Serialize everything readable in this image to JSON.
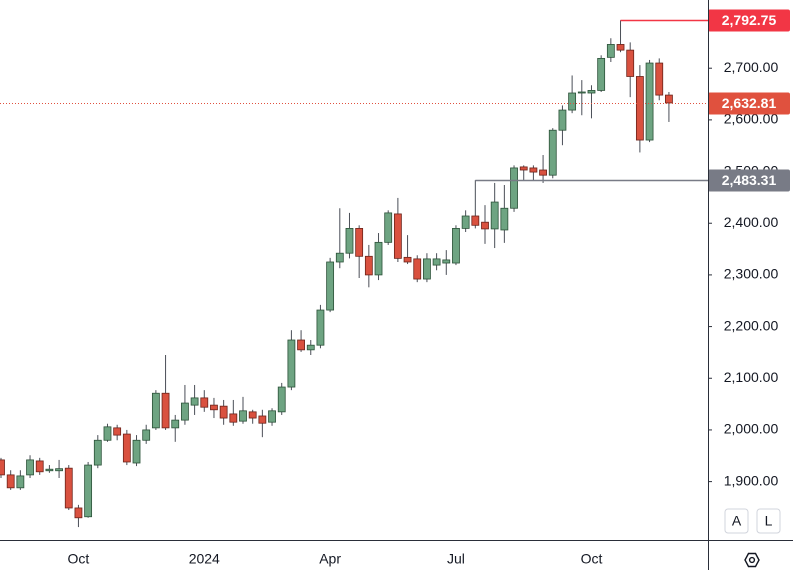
{
  "chart_data": {
    "type": "candlestick",
    "categories": [
      null,
      null,
      null,
      null,
      null,
      null,
      null,
      null,
      "Oct",
      null,
      null,
      null,
      null,
      null,
      null,
      null,
      null,
      null,
      null,
      null,
      null,
      "2024",
      null,
      null,
      null,
      null,
      null,
      null,
      null,
      null,
      null,
      null,
      null,
      null,
      "Apr",
      null,
      null,
      null,
      null,
      null,
      null,
      null,
      null,
      null,
      null,
      null,
      null,
      "Jul",
      null,
      null,
      null,
      null,
      null,
      null,
      null,
      null,
      null,
      null,
      null,
      null,
      null,
      "Oct",
      null,
      null,
      null,
      null,
      null,
      null,
      null,
      null
    ],
    "open": [
      1942,
      1913,
      1888,
      1913,
      1940,
      1921,
      1921,
      1926,
      1849,
      1832,
      1932,
      1980,
      2004,
      1992,
      1936,
      1980,
      2004,
      2071,
      2004,
      2019,
      2048,
      2062,
      2048,
      2046,
      2031,
      2017,
      2035,
      2027,
      2015,
      2035,
      2083,
      2174,
      2155,
      2164,
      2232,
      2325,
      2342,
      2390,
      2336,
      2300,
      2363,
      2418,
      2334,
      2331,
      2292,
      2319,
      2323,
      2323,
      2390,
      2414,
      2402,
      2389,
      2387,
      2429,
      2509,
      2507,
      2503,
      2493,
      2580,
      2619,
      2652,
      2652,
      2657,
      2721,
      2746,
      2735,
      2684,
      2561,
      2710,
      2648
    ],
    "high": [
      1946,
      1922,
      1922,
      1951,
      1946,
      1932,
      1942,
      1932,
      1855,
      1938,
      1990,
      2012,
      2010,
      2000,
      1990,
      2010,
      2077,
      2145,
      2029,
      2087,
      2087,
      2077,
      2062,
      2058,
      2058,
      2064,
      2039,
      2039,
      2042,
      2091,
      2193,
      2193,
      2174,
      2242,
      2333,
      2429,
      2420,
      2396,
      2358,
      2381,
      2425,
      2449,
      2377,
      2338,
      2342,
      2342,
      2348,
      2396,
      2425,
      2483.31,
      2435,
      2478,
      2474,
      2512,
      2512,
      2512,
      2532,
      2584,
      2628,
      2686,
      2677,
      2667,
      2725,
      2758,
      2792.75,
      2750,
      2706,
      2716,
      2719,
      2654
    ],
    "low": [
      1907,
      1884,
      1884,
      1907,
      1913,
      1917,
      1907,
      1845,
      1812,
      1830,
      1926,
      1977,
      1980,
      1932,
      1930,
      1973,
      2000,
      2000,
      1977,
      2010,
      2029,
      2035,
      2023,
      2010,
      2008,
      2012,
      2012,
      1986,
      2008,
      2029,
      2077,
      2151,
      2145,
      2158,
      2228,
      2313,
      2332,
      2294,
      2276,
      2290,
      2358,
      2325,
      2321,
      2286,
      2286,
      2309,
      2300,
      2319,
      2383,
      2390,
      2360,
      2352,
      2362,
      2422,
      2483,
      2483,
      2478,
      2487,
      2551,
      2613,
      2609,
      2603,
      2654,
      2712,
      2731,
      2644,
      2537,
      2557,
      2638,
      2596
    ],
    "close": [
      1913,
      1888,
      1911,
      1942,
      1919,
      1924,
      1925,
      1849,
      1830,
      1932,
      1980,
      2006,
      1990,
      1938,
      1980,
      2000,
      2071,
      2004,
      2019,
      2052,
      2062,
      2044,
      2039,
      2023,
      2015,
      2037,
      2023,
      2013,
      2037,
      2083,
      2174,
      2155,
      2164,
      2232,
      2325,
      2342,
      2390,
      2336,
      2300,
      2363,
      2420,
      2332,
      2325,
      2292,
      2331,
      2331,
      2329,
      2390,
      2414,
      2396,
      2389,
      2441,
      2429,
      2507,
      2503,
      2499,
      2493,
      2580,
      2619,
      2652,
      2654,
      2657,
      2719,
      2746,
      2735,
      2684,
      2561,
      2710,
      2648,
      2632.81
    ],
    "up_color": "#6ea482",
    "down_color": "#d9513f",
    "ylim": [
      1787,
      2832
    ],
    "yticks": [
      {
        "value": 1900,
        "label": "1,900.00"
      },
      {
        "value": 2000,
        "label": "2,000.00"
      },
      {
        "value": 2100,
        "label": "2,100.00"
      },
      {
        "value": 2200,
        "label": "2,200.00"
      },
      {
        "value": 2300,
        "label": "2,300.00"
      },
      {
        "value": 2400,
        "label": "2,400.00"
      },
      {
        "value": 2500,
        "label": "2,500.00"
      },
      {
        "value": 2600,
        "label": "2,600.00"
      },
      {
        "value": 2700,
        "label": "2,700.00"
      }
    ],
    "grid": false,
    "price_lines": [
      {
        "value": 2792.75,
        "label": "2,792.75",
        "color": "#f23645",
        "style": "solid"
      },
      {
        "value": 2632.81,
        "label": "2,632.81",
        "color": "#e0513e",
        "style": "dotted"
      },
      {
        "value": 2483.31,
        "label": "2,483.31",
        "color": "#787b86",
        "style": "solid"
      }
    ]
  },
  "controls": [
    "A",
    "L"
  ]
}
